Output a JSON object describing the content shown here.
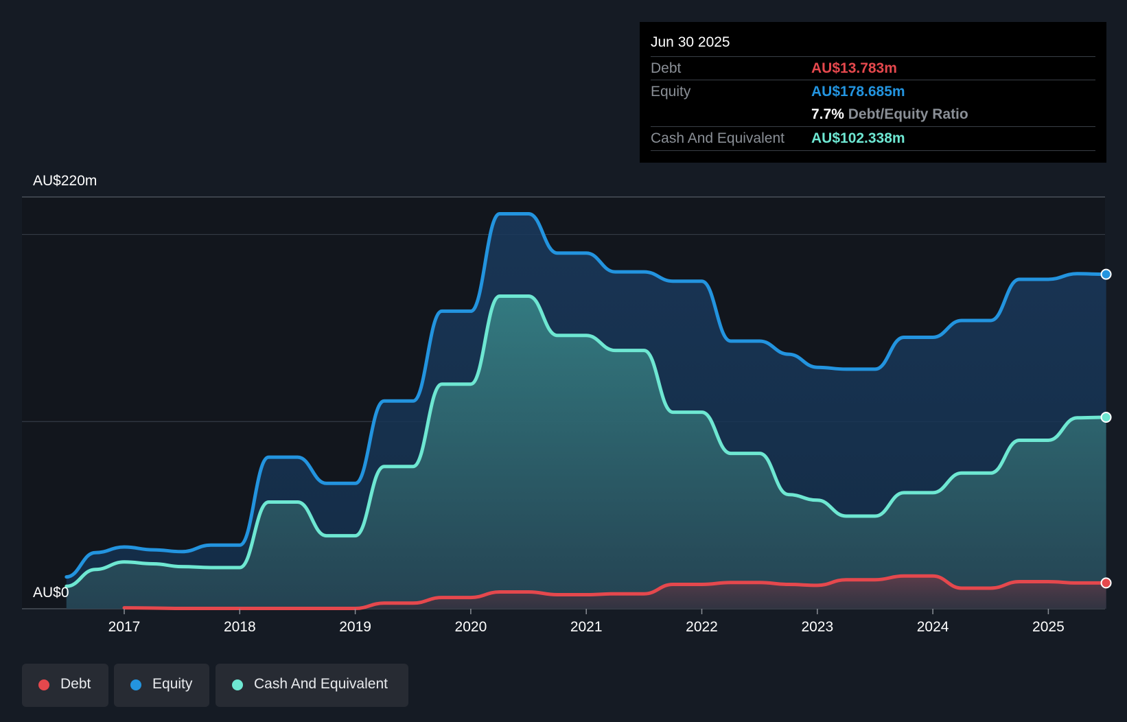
{
  "colors": {
    "background": "#151b24",
    "debt": "#e5484d",
    "equity": "#2394df",
    "cash": "#6ee7d2",
    "grid": "#353b45",
    "axis_text": "#ffffff"
  },
  "tooltip": {
    "date": "Jun 30 2025",
    "rows": [
      {
        "label": "Debt",
        "value": "AU$13.783m",
        "color": "#e5484d"
      },
      {
        "label": "Equity",
        "value": "AU$178.685m",
        "color": "#2394df"
      }
    ],
    "ratio_value": "7.7%",
    "ratio_label": "Debt/Equity Ratio",
    "cash_row": {
      "label": "Cash And Equivalent",
      "value": "AU$102.338m",
      "color": "#6ee7d2"
    }
  },
  "legend": [
    {
      "label": "Debt",
      "color": "#e5484d"
    },
    {
      "label": "Equity",
      "color": "#2394df"
    },
    {
      "label": "Cash And Equivalent",
      "color": "#6ee7d2"
    }
  ],
  "chart_data": {
    "type": "area",
    "y_top_label": "AU$220m",
    "y_bottom_label": "AU$0",
    "ylim": [
      0,
      220
    ],
    "xlim": [
      2016.5,
      2025.5
    ],
    "x_ticks": [
      "2017",
      "2018",
      "2019",
      "2020",
      "2021",
      "2022",
      "2023",
      "2024",
      "2025"
    ],
    "x_tick_values": [
      2017,
      2018,
      2019,
      2020,
      2021,
      2022,
      2023,
      2024,
      2025
    ],
    "grid_values": [
      100,
      200
    ],
    "series": [
      {
        "name": "Equity",
        "color": "#2394df",
        "points": [
          [
            2016.5,
            17
          ],
          [
            2016.75,
            30
          ],
          [
            2017.0,
            33
          ],
          [
            2017.25,
            31.5
          ],
          [
            2017.5,
            30.5
          ],
          [
            2017.75,
            34
          ],
          [
            2018.0,
            34
          ],
          [
            2018.25,
            81
          ],
          [
            2018.5,
            81
          ],
          [
            2018.75,
            67
          ],
          [
            2019.0,
            67
          ],
          [
            2019.25,
            111
          ],
          [
            2019.5,
            111
          ],
          [
            2019.75,
            159
          ],
          [
            2020.0,
            159
          ],
          [
            2020.25,
            211
          ],
          [
            2020.5,
            211
          ],
          [
            2020.75,
            190
          ],
          [
            2021.0,
            190
          ],
          [
            2021.25,
            180
          ],
          [
            2021.5,
            180
          ],
          [
            2021.75,
            175
          ],
          [
            2022.0,
            175
          ],
          [
            2022.25,
            143
          ],
          [
            2022.5,
            143
          ],
          [
            2022.75,
            136
          ],
          [
            2023.0,
            129
          ],
          [
            2023.25,
            128
          ],
          [
            2023.5,
            128
          ],
          [
            2023.75,
            145
          ],
          [
            2024.0,
            145
          ],
          [
            2024.25,
            154
          ],
          [
            2024.5,
            154
          ],
          [
            2024.75,
            176
          ],
          [
            2025.0,
            176
          ],
          [
            2025.25,
            179
          ],
          [
            2025.5,
            178.7
          ]
        ]
      },
      {
        "name": "Cash And Equivalent",
        "color": "#6ee7d2",
        "points": [
          [
            2016.5,
            12
          ],
          [
            2016.75,
            21
          ],
          [
            2017.0,
            25
          ],
          [
            2017.25,
            24
          ],
          [
            2017.5,
            22.5
          ],
          [
            2017.75,
            22
          ],
          [
            2018.0,
            22
          ],
          [
            2018.25,
            57
          ],
          [
            2018.5,
            57
          ],
          [
            2018.75,
            39
          ],
          [
            2019.0,
            39
          ],
          [
            2019.25,
            76
          ],
          [
            2019.5,
            76
          ],
          [
            2019.75,
            120
          ],
          [
            2020.0,
            120
          ],
          [
            2020.25,
            167
          ],
          [
            2020.5,
            167
          ],
          [
            2020.75,
            146
          ],
          [
            2021.0,
            146
          ],
          [
            2021.25,
            138
          ],
          [
            2021.5,
            138
          ],
          [
            2021.75,
            105
          ],
          [
            2022.0,
            105
          ],
          [
            2022.25,
            83
          ],
          [
            2022.5,
            83
          ],
          [
            2022.75,
            61
          ],
          [
            2023.0,
            58
          ],
          [
            2023.25,
            49.5
          ],
          [
            2023.5,
            49.5
          ],
          [
            2023.75,
            62
          ],
          [
            2024.0,
            62
          ],
          [
            2024.25,
            72.5
          ],
          [
            2024.5,
            72.5
          ],
          [
            2024.75,
            90
          ],
          [
            2025.0,
            90
          ],
          [
            2025.25,
            102
          ],
          [
            2025.5,
            102.3
          ]
        ]
      },
      {
        "name": "Debt",
        "color": "#e5484d",
        "points": [
          [
            2017.0,
            0.5
          ],
          [
            2017.5,
            0.2
          ],
          [
            2018.0,
            0.2
          ],
          [
            2018.5,
            0.2
          ],
          [
            2019.0,
            0.2
          ],
          [
            2019.25,
            3
          ],
          [
            2019.5,
            3
          ],
          [
            2019.75,
            6
          ],
          [
            2020.0,
            6
          ],
          [
            2020.25,
            9
          ],
          [
            2020.5,
            9
          ],
          [
            2020.75,
            7.5
          ],
          [
            2021.0,
            7.5
          ],
          [
            2021.25,
            8
          ],
          [
            2021.5,
            8
          ],
          [
            2021.75,
            13
          ],
          [
            2022.0,
            13
          ],
          [
            2022.25,
            14
          ],
          [
            2022.5,
            14
          ],
          [
            2022.75,
            13
          ],
          [
            2023.0,
            12.5
          ],
          [
            2023.25,
            15.5
          ],
          [
            2023.5,
            15.5
          ],
          [
            2023.75,
            17.5
          ],
          [
            2024.0,
            17.5
          ],
          [
            2024.25,
            11
          ],
          [
            2024.5,
            11
          ],
          [
            2024.75,
            14.5
          ],
          [
            2025.0,
            14.5
          ],
          [
            2025.25,
            13.8
          ],
          [
            2025.5,
            13.8
          ]
        ]
      }
    ],
    "legend_position": "bottom-left"
  }
}
